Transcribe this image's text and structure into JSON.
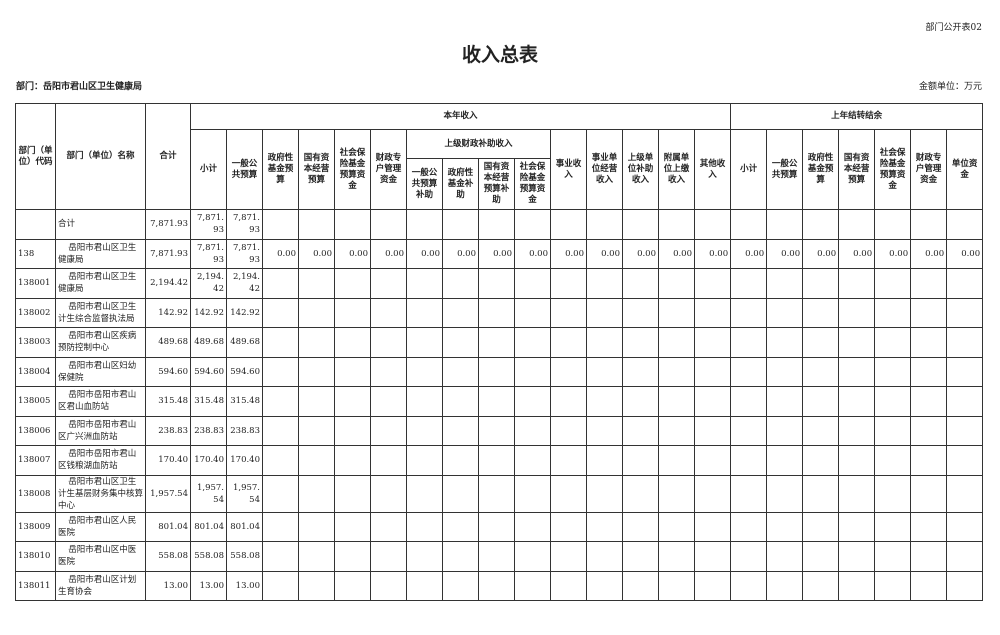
{
  "form_no": "部门公开表02",
  "title": "收入总表",
  "department": "部门：岳阳市君山区卫生健康局",
  "unit": "金额单位：万元",
  "headers": {
    "code": "部门（单位）代码",
    "name": "部门（单位）名称",
    "total": "合计",
    "current_year": "本年收入",
    "upper_finance": "上级财政补助收入",
    "last_year": "上年结转结余",
    "current_cols_a": [
      "小计",
      "一般公共预算",
      "政府性基金预算",
      "国有资本经营预算",
      "社会保险基金预算资金",
      "财政专户管理资金"
    ],
    "upper_cols": [
      "一般公共预算补助",
      "政府性基金补助",
      "国有资本经营预算补助",
      "社会保险基金预算资金"
    ],
    "current_cols_b": [
      "事业收入",
      "事业单位经营收入",
      "上级单位补助收入",
      "附属单位上缴收入",
      "其他收入"
    ],
    "last_cols": [
      "小计",
      "一般公共预算",
      "政府性基金预算",
      "国有资本经营预算",
      "社会保险基金预算资金",
      "财政专户管理资金",
      "单位资金"
    ]
  },
  "rows": [
    {
      "code": "",
      "name": "合计",
      "total": "7,871.93",
      "values": [
        "7,871.93",
        "7,871.93",
        "",
        "",
        "",
        "",
        "",
        "",
        "",
        "",
        "",
        "",
        "",
        "",
        "",
        "",
        "",
        "",
        "",
        "",
        "",
        ""
      ]
    },
    {
      "code": "138",
      "name": "岳阳市君山区卫生健康局",
      "total": "7,871.93",
      "values": [
        "7,871.93",
        "7,871.93",
        "0.00",
        "0.00",
        "0.00",
        "0.00",
        "0.00",
        "0.00",
        "0.00",
        "0.00",
        "0.00",
        "0.00",
        "0.00",
        "0.00",
        "0.00",
        "0.00",
        "0.00",
        "0.00",
        "0.00",
        "0.00",
        "0.00",
        "0.00"
      ]
    },
    {
      "code": "138001",
      "name": "岳阳市君山区卫生健康局",
      "total": "2,194.42",
      "values": [
        "2,194.42",
        "2,194.42",
        "",
        "",
        "",
        "",
        "",
        "",
        "",
        "",
        "",
        "",
        "",
        "",
        "",
        "",
        "",
        "",
        "",
        "",
        "",
        ""
      ]
    },
    {
      "code": "138002",
      "name": "岳阳市君山区卫生计生综合监督执法局",
      "total": "142.92",
      "values": [
        "142.92",
        "142.92",
        "",
        "",
        "",
        "",
        "",
        "",
        "",
        "",
        "",
        "",
        "",
        "",
        "",
        "",
        "",
        "",
        "",
        "",
        "",
        ""
      ]
    },
    {
      "code": "138003",
      "name": "岳阳市君山区疾病预防控制中心",
      "total": "489.68",
      "values": [
        "489.68",
        "489.68",
        "",
        "",
        "",
        "",
        "",
        "",
        "",
        "",
        "",
        "",
        "",
        "",
        "",
        "",
        "",
        "",
        "",
        "",
        "",
        ""
      ]
    },
    {
      "code": "138004",
      "name": "岳阳市君山区妇幼保健院",
      "total": "594.60",
      "values": [
        "594.60",
        "594.60",
        "",
        "",
        "",
        "",
        "",
        "",
        "",
        "",
        "",
        "",
        "",
        "",
        "",
        "",
        "",
        "",
        "",
        "",
        "",
        ""
      ]
    },
    {
      "code": "138005",
      "name": "岳阳市岳阳市君山区君山血防站",
      "total": "315.48",
      "values": [
        "315.48",
        "315.48",
        "",
        "",
        "",
        "",
        "",
        "",
        "",
        "",
        "",
        "",
        "",
        "",
        "",
        "",
        "",
        "",
        "",
        "",
        "",
        ""
      ]
    },
    {
      "code": "138006",
      "name": "岳阳市岳阳市君山区广兴洲血防站",
      "total": "238.83",
      "values": [
        "238.83",
        "238.83",
        "",
        "",
        "",
        "",
        "",
        "",
        "",
        "",
        "",
        "",
        "",
        "",
        "",
        "",
        "",
        "",
        "",
        "",
        "",
        ""
      ]
    },
    {
      "code": "138007",
      "name": "岳阳市岳阳市君山区钱粮湖血防站",
      "total": "170.40",
      "values": [
        "170.40",
        "170.40",
        "",
        "",
        "",
        "",
        "",
        "",
        "",
        "",
        "",
        "",
        "",
        "",
        "",
        "",
        "",
        "",
        "",
        "",
        "",
        ""
      ]
    },
    {
      "code": "138008",
      "name": "岳阳市君山区卫生计生基层财务集中核算中心",
      "total": "1,957.54",
      "values": [
        "1,957.54",
        "1,957.54",
        "",
        "",
        "",
        "",
        "",
        "",
        "",
        "",
        "",
        "",
        "",
        "",
        "",
        "",
        "",
        "",
        "",
        "",
        "",
        ""
      ]
    },
    {
      "code": "138009",
      "name": "岳阳市君山区人民医院",
      "total": "801.04",
      "values": [
        "801.04",
        "801.04",
        "",
        "",
        "",
        "",
        "",
        "",
        "",
        "",
        "",
        "",
        "",
        "",
        "",
        "",
        "",
        "",
        "",
        "",
        "",
        ""
      ]
    },
    {
      "code": "138010",
      "name": "岳阳市君山区中医医院",
      "total": "558.08",
      "values": [
        "558.08",
        "558.08",
        "",
        "",
        "",
        "",
        "",
        "",
        "",
        "",
        "",
        "",
        "",
        "",
        "",
        "",
        "",
        "",
        "",
        "",
        "",
        ""
      ]
    },
    {
      "code": "138011",
      "name": "岳阳市君山区计划生育协会",
      "total": "13.00",
      "values": [
        "13.00",
        "13.00",
        "",
        "",
        "",
        "",
        "",
        "",
        "",
        "",
        "",
        "",
        "",
        "",
        "",
        "",
        "",
        "",
        "",
        "",
        "",
        ""
      ]
    }
  ]
}
